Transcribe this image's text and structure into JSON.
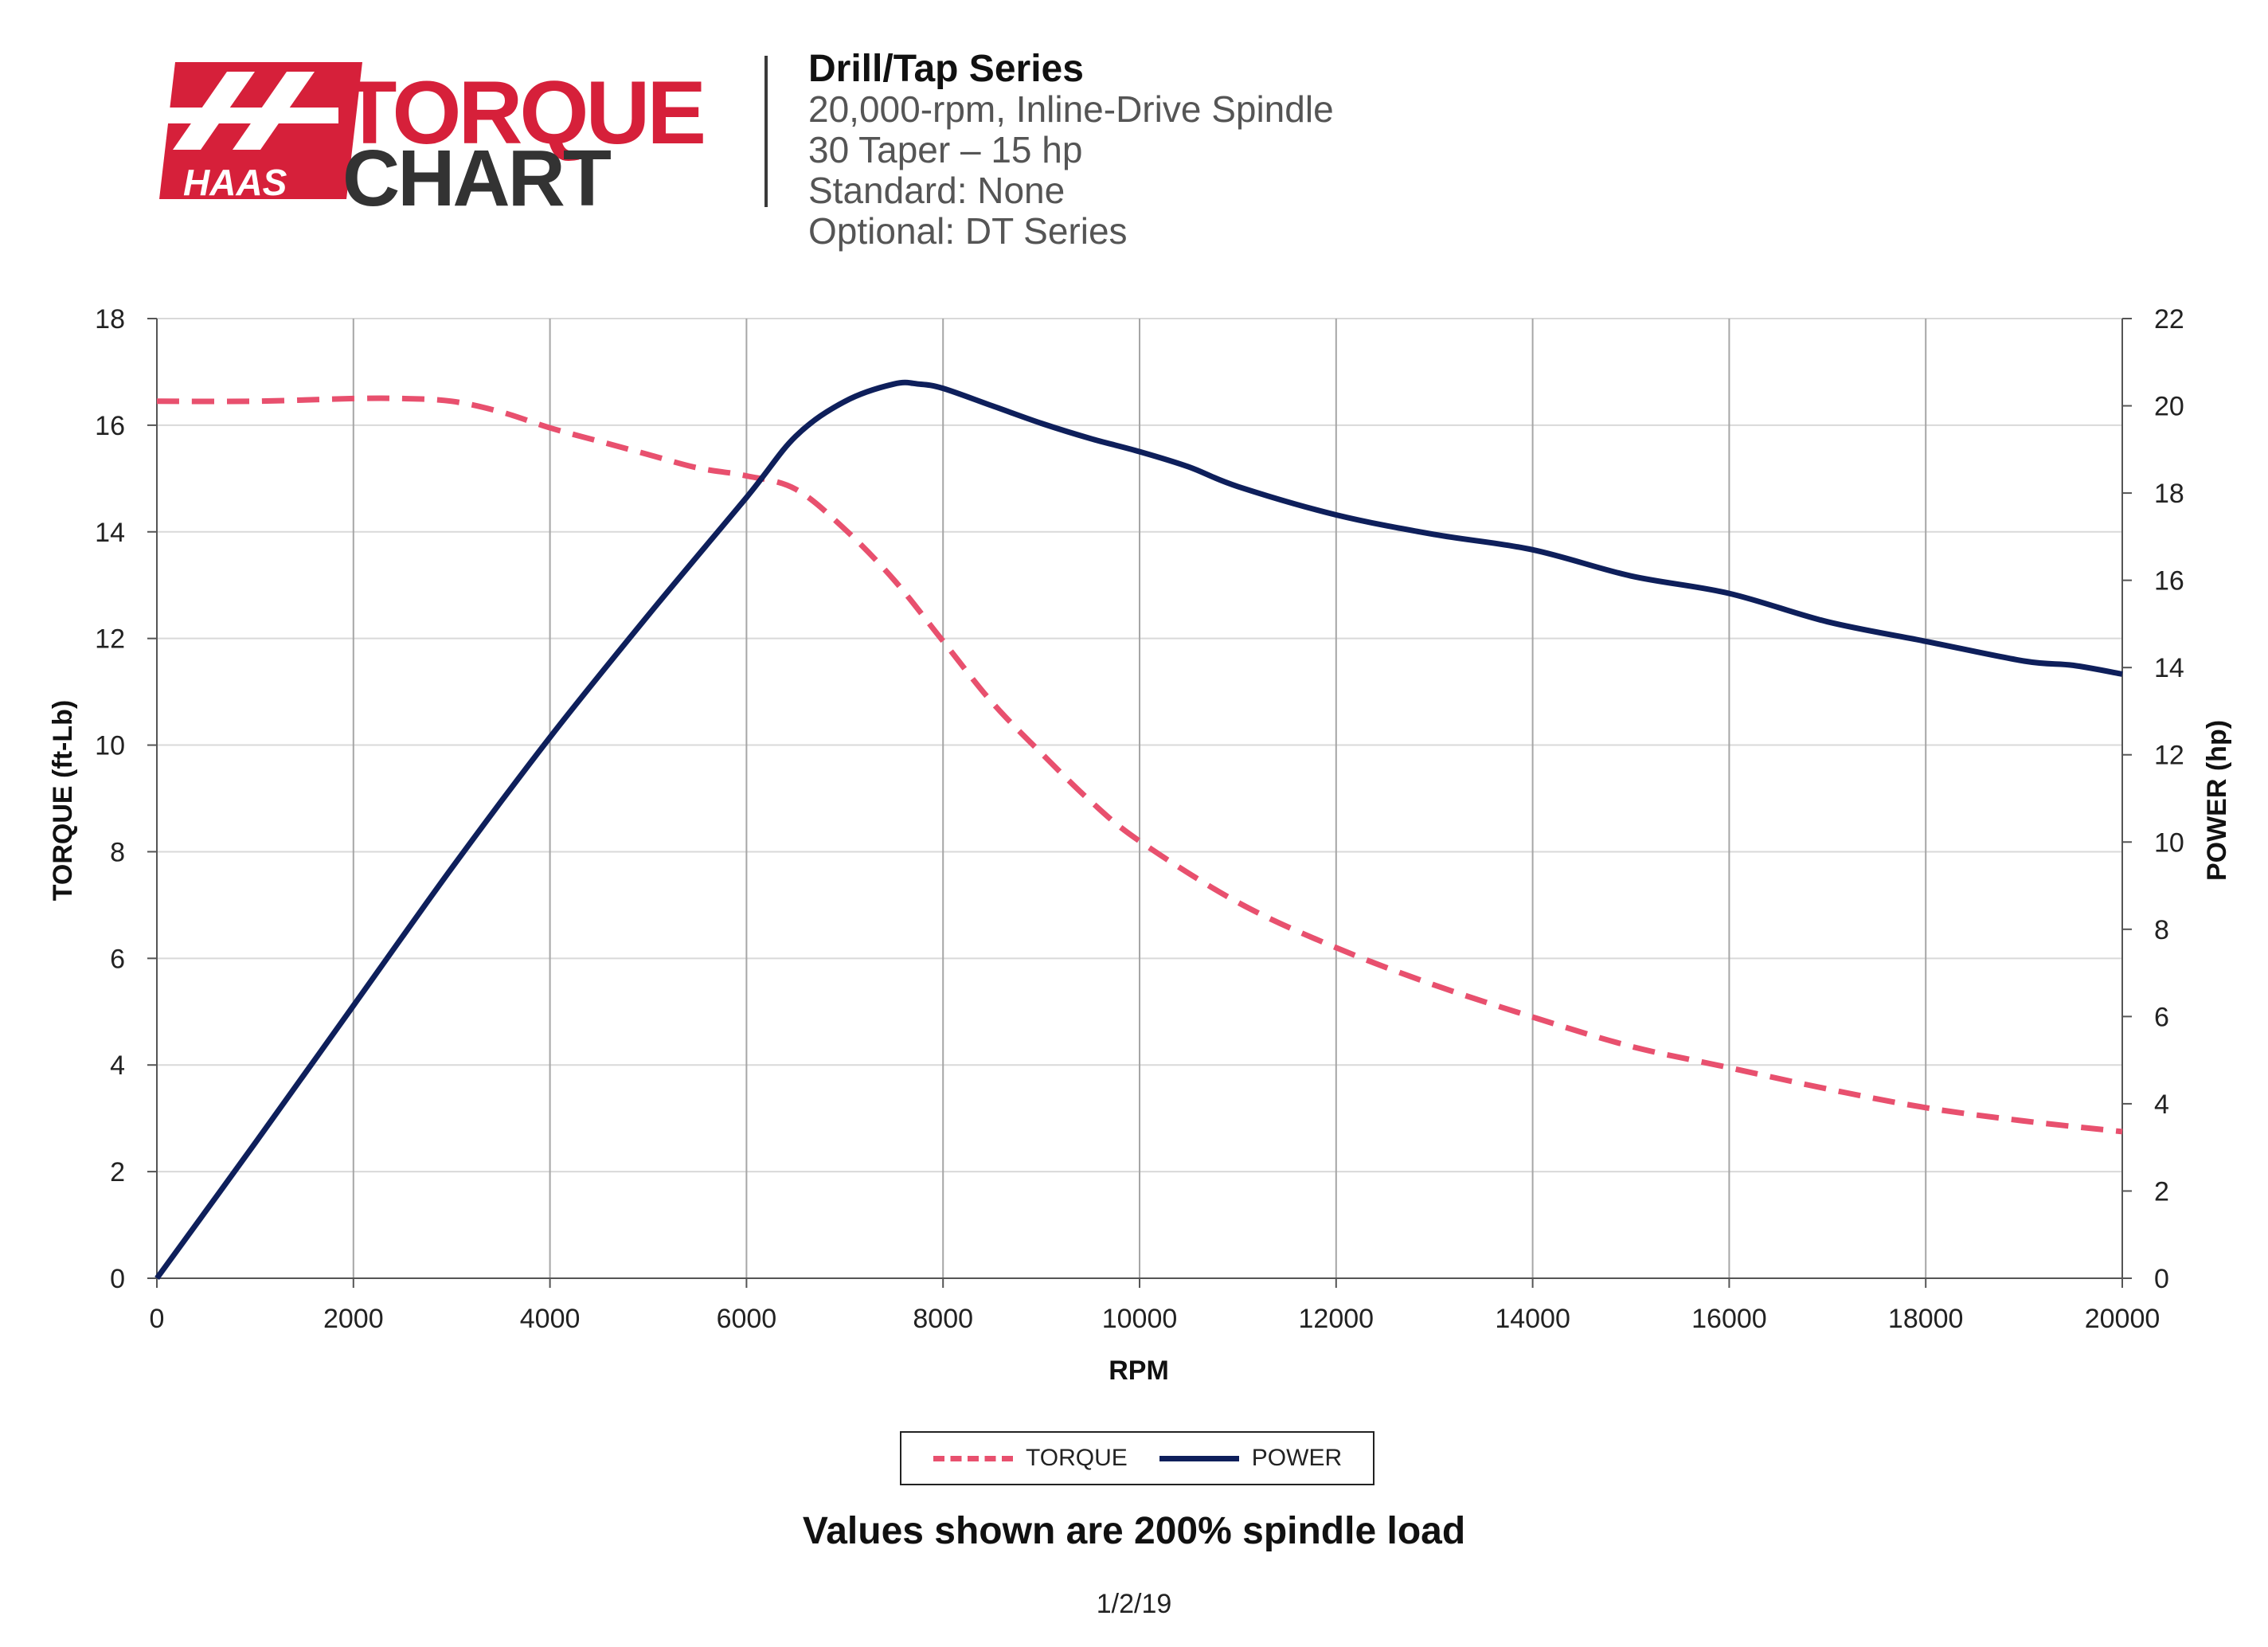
{
  "logo": {
    "brand": "HAAS",
    "word1": "TORQUE",
    "word2": "CHART",
    "name": "haas-torque-chart-logo"
  },
  "header": {
    "title": "Drill/Tap Series",
    "line1": "20,000-rpm, Inline-Drive Spindle",
    "line2": "30 Taper – 15 hp",
    "line3": "Standard: None",
    "line4": "Optional: DT Series"
  },
  "colors": {
    "torque": "#e8506e",
    "power": "#0e1f5b",
    "brand_red": "#d6203a",
    "brand_dark": "#333333",
    "grid_v": "#a6a6a6",
    "grid_h": "#d9d9d9"
  },
  "chart_data": {
    "type": "line",
    "xlabel": "RPM",
    "ylabel": "TORQUE (ft-Lb)",
    "y2label": "POWER (hp)",
    "xlim": [
      0,
      20000
    ],
    "ylim": [
      0,
      18
    ],
    "y2lim": [
      0,
      22
    ],
    "xticks": [
      0,
      2000,
      4000,
      6000,
      8000,
      10000,
      12000,
      14000,
      16000,
      18000,
      20000
    ],
    "yticks": [
      0,
      2,
      4,
      6,
      8,
      10,
      12,
      14,
      16,
      18
    ],
    "y2ticks": [
      0,
      2,
      4,
      6,
      8,
      10,
      12,
      14,
      16,
      18,
      20,
      22
    ],
    "grid": true,
    "legend_position": "bottom-center",
    "series": [
      {
        "name": "TORQUE",
        "axis": "left",
        "style": "dashed",
        "x": [
          0,
          1000,
          2000,
          2500,
          3000,
          3500,
          4000,
          4500,
          5000,
          5500,
          6000,
          6500,
          7000,
          7500,
          8000,
          8500,
          9000,
          9500,
          10000,
          11000,
          12000,
          13000,
          14000,
          15000,
          16000,
          17000,
          18000,
          19000,
          20000
        ],
        "values": [
          16.45,
          16.45,
          16.5,
          16.5,
          16.45,
          16.25,
          15.95,
          15.7,
          15.45,
          15.2,
          15.05,
          14.8,
          14.05,
          13.1,
          11.95,
          10.8,
          9.85,
          8.95,
          8.2,
          7.05,
          6.2,
          5.5,
          4.9,
          4.35,
          3.95,
          3.55,
          3.2,
          2.95,
          2.75
        ]
      },
      {
        "name": "POWER",
        "axis": "right",
        "style": "solid",
        "x": [
          0,
          1000,
          2000,
          3000,
          4000,
          5000,
          6000,
          6500,
          7000,
          7500,
          7750,
          8000,
          8500,
          9000,
          9500,
          10000,
          10500,
          11000,
          12000,
          13000,
          14000,
          15000,
          16000,
          17000,
          18000,
          19000,
          19500,
          20000
        ],
        "values": [
          0,
          3.1,
          6.25,
          9.4,
          12.4,
          15.2,
          17.9,
          19.3,
          20.1,
          20.5,
          20.5,
          20.4,
          20.0,
          19.6,
          19.25,
          18.95,
          18.6,
          18.15,
          17.5,
          17.05,
          16.7,
          16.1,
          15.7,
          15.05,
          14.6,
          14.15,
          14.05,
          13.85
        ]
      }
    ]
  },
  "legend": {
    "torque": "TORQUE",
    "power": "POWER"
  },
  "footer": {
    "note": "Values shown are 200% spindle load",
    "date": "1/2/19"
  }
}
